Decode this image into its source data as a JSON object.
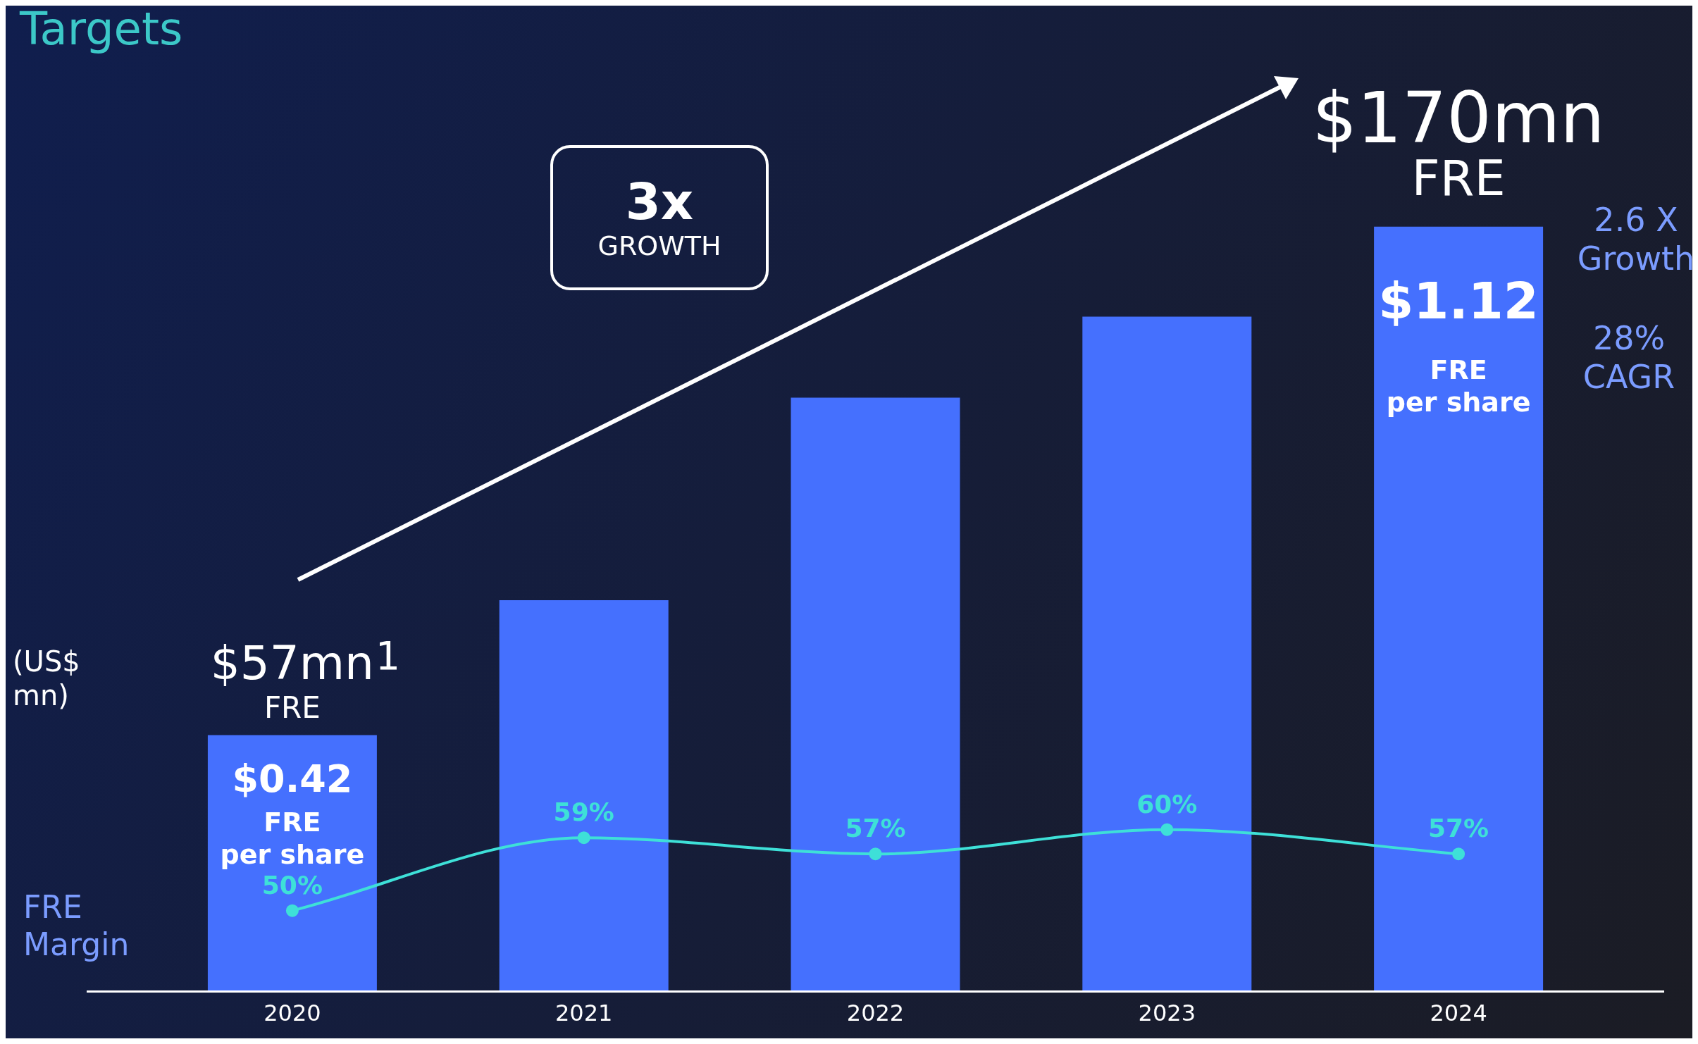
{
  "chart_data": {
    "type": "bar",
    "title": "Targets",
    "categories": [
      "2020",
      "2021",
      "2022",
      "2023",
      "2024"
    ],
    "series": [
      {
        "color": "#4570fe",
        "values": [
          57,
          87,
          132,
          150,
          170
        ],
        "value_labels": [
          "$57mn",
          null,
          null,
          null,
          "$170mn"
        ]
      },
      {
        "type": "line",
        "axis": "y2",
        "color": "#3ee0d8",
        "values": [
          50,
          59,
          57,
          60,
          57
        ],
        "value_labels": [
          "50%",
          "59%",
          "57%",
          "60%",
          "57%"
        ]
      }
    ],
    "tick_labels": "x",
    "grid": false,
    "legend": false,
    "marker": "circle",
    "annotations": [
      "3x\nGROWTH",
      "(US$\nmn)",
      "FRE\nMargin",
      "2.6 X\nGrowth",
      "28%\nCAGR",
      "$0.42\nFRE\nper share",
      "$1.12\nFRE\nper share",
      "FRE",
      "FRE",
      "$^{1}$"
    ]
  }
}
